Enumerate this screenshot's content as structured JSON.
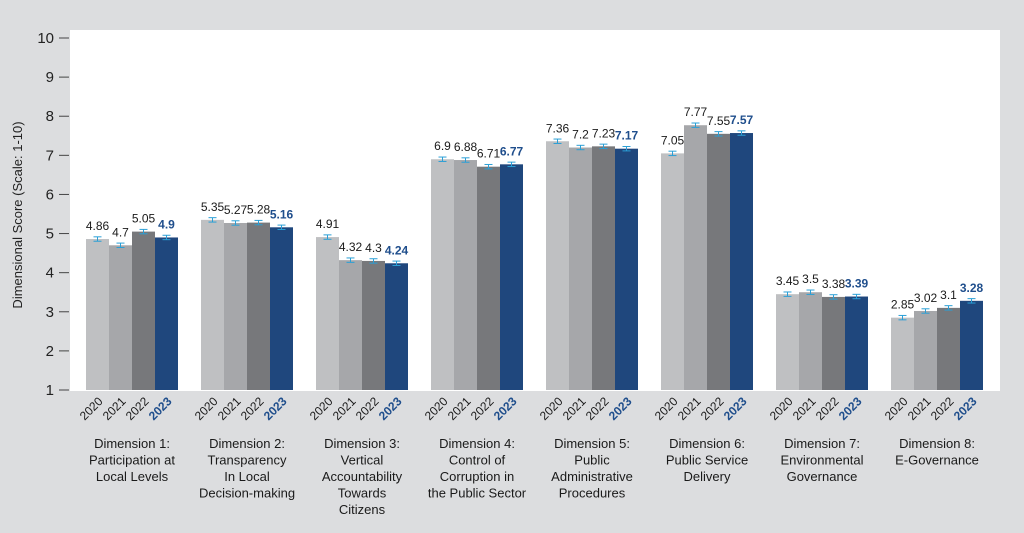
{
  "chart_data": {
    "type": "bar",
    "title": "",
    "xlabel": "",
    "ylabel": "Dimensional Score (Scale: 1-10)",
    "ylim": [
      1,
      10
    ],
    "yticks": [
      "1",
      "2",
      "3",
      "4",
      "5",
      "6",
      "7",
      "8",
      "9",
      "10"
    ],
    "grid": false,
    "legend": "none",
    "highlight_series": "2023",
    "colors": {
      "2020": "#bfc0c2",
      "2021": "#a6a7aa",
      "2022": "#77787b",
      "2023": "#1f477d",
      "highlight_text": "#1f4e8c",
      "error_bar": "#2a9fd6",
      "plot_bg": "#ffffff",
      "page_bg": "#dcdddf"
    },
    "categories": [
      [
        "Dimension 1:",
        "Participation at",
        "Local Levels"
      ],
      [
        "Dimension 2:",
        "Transparency",
        "In Local",
        "Decision-making"
      ],
      [
        "Dimension 3:",
        "Vertical",
        "Accountability",
        "Towards",
        "Citizens"
      ],
      [
        "Dimension 4:",
        "Control of",
        "Corruption in",
        "the Public Sector"
      ],
      [
        "Dimension 5:",
        "Public",
        "Administrative",
        "Procedures"
      ],
      [
        "Dimension 6:",
        "Public Service",
        "Delivery"
      ],
      [
        "Dimension 7:",
        "Environmental",
        "Governance"
      ],
      [
        "Dimension 8:",
        "E-Governance"
      ]
    ],
    "series": [
      {
        "name": "2020",
        "values": [
          4.86,
          5.35,
          4.91,
          6.9,
          7.36,
          7.05,
          3.45,
          2.85
        ],
        "labels": [
          "4.86",
          "5.35",
          "4.91",
          "6.9",
          "7.36",
          "7.05",
          "3.45",
          "2.85"
        ]
      },
      {
        "name": "2021",
        "values": [
          4.7,
          5.27,
          4.32,
          6.88,
          7.2,
          7.77,
          3.5,
          3.02
        ],
        "labels": [
          "4.7",
          "5.27",
          "4.32",
          "6.88",
          "7.2",
          "7.77",
          "3.5",
          "3.02"
        ]
      },
      {
        "name": "2022",
        "values": [
          5.05,
          5.28,
          4.3,
          6.71,
          7.23,
          7.55,
          3.38,
          3.1
        ],
        "labels": [
          "5.05",
          "5.28",
          "4.3",
          "6.71",
          "7.23",
          "7.55",
          "3.38",
          "3.1"
        ]
      },
      {
        "name": "2023",
        "values": [
          4.9,
          5.16,
          4.24,
          6.77,
          7.17,
          7.57,
          3.39,
          3.28
        ],
        "labels": [
          "4.9",
          "5.16",
          "4.24",
          "6.77",
          "7.17",
          "7.57",
          "3.39",
          "3.28"
        ]
      }
    ],
    "error_bars": "small symmetric confidence intervals on every bar"
  }
}
